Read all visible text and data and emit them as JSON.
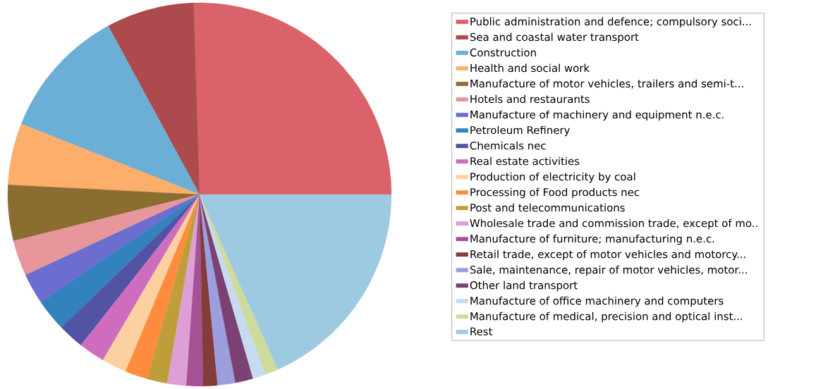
{
  "chart_data": {
    "type": "pie",
    "legend": "right",
    "categories": [
      "Public administration and defence; compulsory soci...",
      "Sea and coastal water transport",
      "Construction",
      "Health and social work",
      "Manufacture of motor vehicles, trailers and semi-t...",
      "Hotels and restaurants",
      "Manufacture of machinery and equipment n.e.c.",
      "Petroleum Refinery",
      "Chemicals nec",
      "Real estate activities",
      "Production of electricity by coal",
      "Processing of Food products nec",
      "Post and telecommunications",
      "Wholesale trade and commission trade, except of mo..",
      "Manufacture of furniture; manufacturing n.e.c.",
      "Retail trade, except of motor vehicles and motorcy...",
      "Sale, maintenance, repair of motor vehicles, motor...",
      "Other land transport",
      "Manufacture of office machinery and computers",
      "Manufacture of medical, precision and optical inst...",
      "Rest"
    ],
    "values": [
      25.5,
      7.4,
      11.1,
      5.2,
      4.7,
      3.0,
      2.6,
      2.7,
      2.2,
      2.2,
      2.1,
      1.9,
      1.7,
      1.6,
      1.4,
      1.2,
      1.5,
      1.5,
      1.1,
      1.1,
      18.3
    ],
    "colors": [
      "#d9626b",
      "#ac4a4d",
      "#6baed6",
      "#fdae6b",
      "#8c6d31",
      "#e7969c",
      "#6b6ecf",
      "#3182bd",
      "#5254a3",
      "#ce6dbd",
      "#fdd0a2",
      "#fd8d3c",
      "#bd9e39",
      "#de9ed6",
      "#a55194",
      "#843c39",
      "#9c9ede",
      "#7b4173",
      "#c6dbef",
      "#cedb9c",
      "#9ecae1"
    ]
  }
}
